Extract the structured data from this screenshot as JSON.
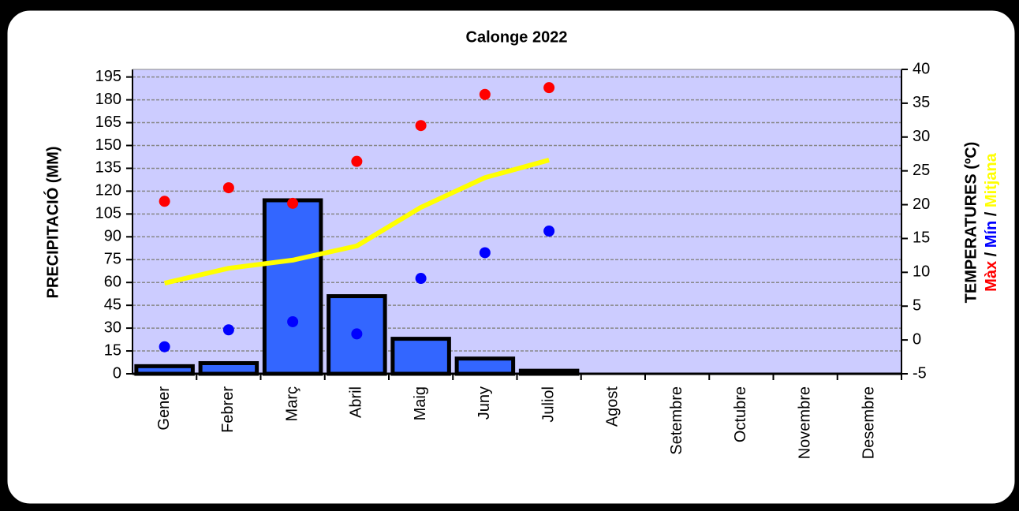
{
  "chart_data": {
    "type": "combo",
    "title": "Calonge 2022",
    "ylabel": "PRECIPITACIÓ (MM)",
    "y2label": "TEMPERATURES (ºC)",
    "y2label_separator": "/",
    "categories": [
      "Gener",
      "Febrer",
      "Març",
      "Abril",
      "Maig",
      "Juny",
      "Juliol",
      "Agost",
      "Setembre",
      "Octubre",
      "Novembre",
      "Desembre"
    ],
    "ylim": [
      0,
      200
    ],
    "yticks": [
      0,
      15,
      30,
      45,
      60,
      75,
      90,
      105,
      120,
      135,
      150,
      165,
      180,
      195
    ],
    "y2lim": [
      -5,
      40
    ],
    "y2ticks": [
      -5,
      0,
      5,
      10,
      15,
      20,
      25,
      30,
      35,
      40
    ],
    "grid": true,
    "background": "#ccccff",
    "series": [
      {
        "type": "bar",
        "color": "#3366ff",
        "values": [
          5,
          7,
          114,
          51,
          23,
          10,
          2,
          null,
          null,
          null,
          null,
          null
        ]
      },
      {
        "name": "Màx",
        "type": "scatter",
        "axis": "y2",
        "color": "#ff0000",
        "values": [
          20.5,
          22.5,
          20.2,
          26.4,
          31.7,
          36.3,
          37.3,
          null,
          null,
          null,
          null,
          null
        ]
      },
      {
        "name": "Mín",
        "type": "scatter",
        "axis": "y2",
        "color": "#0000ff",
        "values": [
          -1.0,
          1.5,
          2.7,
          0.9,
          9.1,
          12.9,
          16.1,
          null,
          null,
          null,
          null,
          null
        ]
      },
      {
        "name": "Mitjana",
        "type": "line",
        "axis": "y2",
        "color": "#ffff00",
        "values": [
          8.4,
          10.6,
          11.8,
          13.9,
          19.6,
          24.0,
          26.6,
          null,
          null,
          null,
          null,
          null
        ]
      }
    ]
  }
}
